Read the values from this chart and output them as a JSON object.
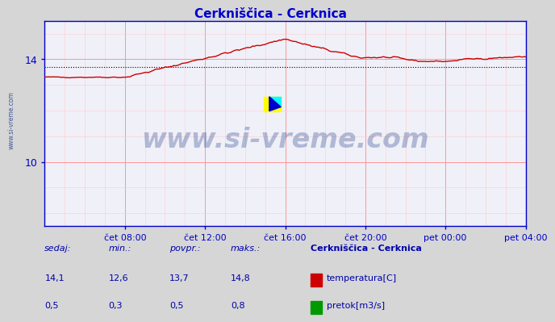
{
  "title": "Cerkniščica - Cerknica",
  "bg_color": "#d6d6d6",
  "plot_bg_color": "#f0f0f8",
  "grid_color_major": "#ff8888",
  "grid_color_minor": "#ffcccc",
  "xlabel_color": "#0000cc",
  "ylabel_color": "#0000cc",
  "title_color": "#0000cc",
  "watermark_color": "#1a3a8a",
  "axis_color": "#0000cc",
  "x_ticks_labels": [
    "čet 08:00",
    "čet 12:00",
    "čet 16:00",
    "čet 20:00",
    "pet 00:00",
    "pet 04:00"
  ],
  "x_ticks_pos_frac": [
    0.167,
    0.333,
    0.5,
    0.667,
    0.833,
    1.0
  ],
  "y_ticks": [
    10,
    14
  ],
  "ylim": [
    7.5,
    15.5
  ],
  "temp_color": "#cc0000",
  "flow_color": "#009900",
  "avg_line_color": "#000000",
  "temp_avg": 13.7,
  "flow_avg": 0.5,
  "legend_title": "Cerkniščica - Cerknica",
  "legend_color": "#0000aa",
  "table_header_color": "#0000aa",
  "sedaj_label": "sedaj:",
  "min_label": "min.:",
  "povpr_label": "povpr.:",
  "maks_label": "maks.:",
  "temp_sedaj": "14,1",
  "temp_min": "12,6",
  "temp_povpr": "13,7",
  "temp_maks": "14,8",
  "flow_sedaj": "0,5",
  "flow_min": "0,3",
  "flow_povpr": "0,5",
  "flow_maks": "0,8",
  "temp_label": "temperatura[C]",
  "flow_label": "pretok[m3/s]",
  "watermark": "www.si-vreme.com",
  "side_label": "www.si-vreme.com",
  "n_points": 288
}
